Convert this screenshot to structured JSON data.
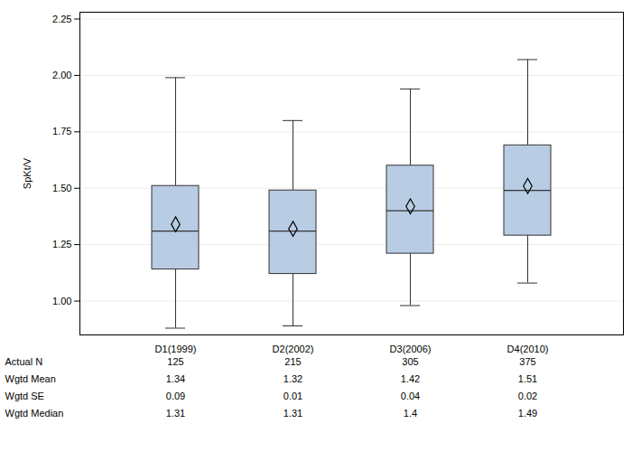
{
  "chart_data": {
    "type": "box",
    "y_label": "SpKt/V",
    "categories": [
      "D1(1999)",
      "D2(2002)",
      "D3(2006)",
      "D4(2010)"
    ],
    "whisker_low": [
      0.88,
      0.89,
      0.98,
      1.08
    ],
    "q1": [
      1.14,
      1.12,
      1.21,
      1.29
    ],
    "median": [
      1.31,
      1.31,
      1.4,
      1.49
    ],
    "q3": [
      1.51,
      1.49,
      1.6,
      1.69
    ],
    "whisker_high": [
      1.99,
      1.8,
      1.94,
      2.07
    ],
    "mean": [
      1.34,
      1.32,
      1.42,
      1.51
    ],
    "color": "#b8cce4",
    "marker": "diamond",
    "ylim": [
      0.85,
      2.28
    ],
    "yticks": [
      {
        "value": 1,
        "label": "1.00"
      },
      {
        "value": 1.25,
        "label": "1.25"
      },
      {
        "value": 1.5,
        "label": "1.50"
      },
      {
        "value": 1.75,
        "label": "1.75"
      },
      {
        "value": 2,
        "label": "2.00"
      },
      {
        "value": 2.25,
        "label": "2.25"
      }
    ],
    "grid": true,
    "stats_table": [
      {
        "label": "Actual N",
        "values": [
          125,
          215,
          305,
          375
        ]
      },
      {
        "label": "Wgtd Mean",
        "values": [
          1.34,
          1.32,
          1.42,
          1.51
        ]
      },
      {
        "label": "Wgtd SE",
        "values": [
          0.09,
          0.01,
          0.04,
          0.02
        ]
      },
      {
        "label": "Wgtd Median",
        "values": [
          1.31,
          1.31,
          1.4,
          1.49
        ]
      }
    ]
  }
}
